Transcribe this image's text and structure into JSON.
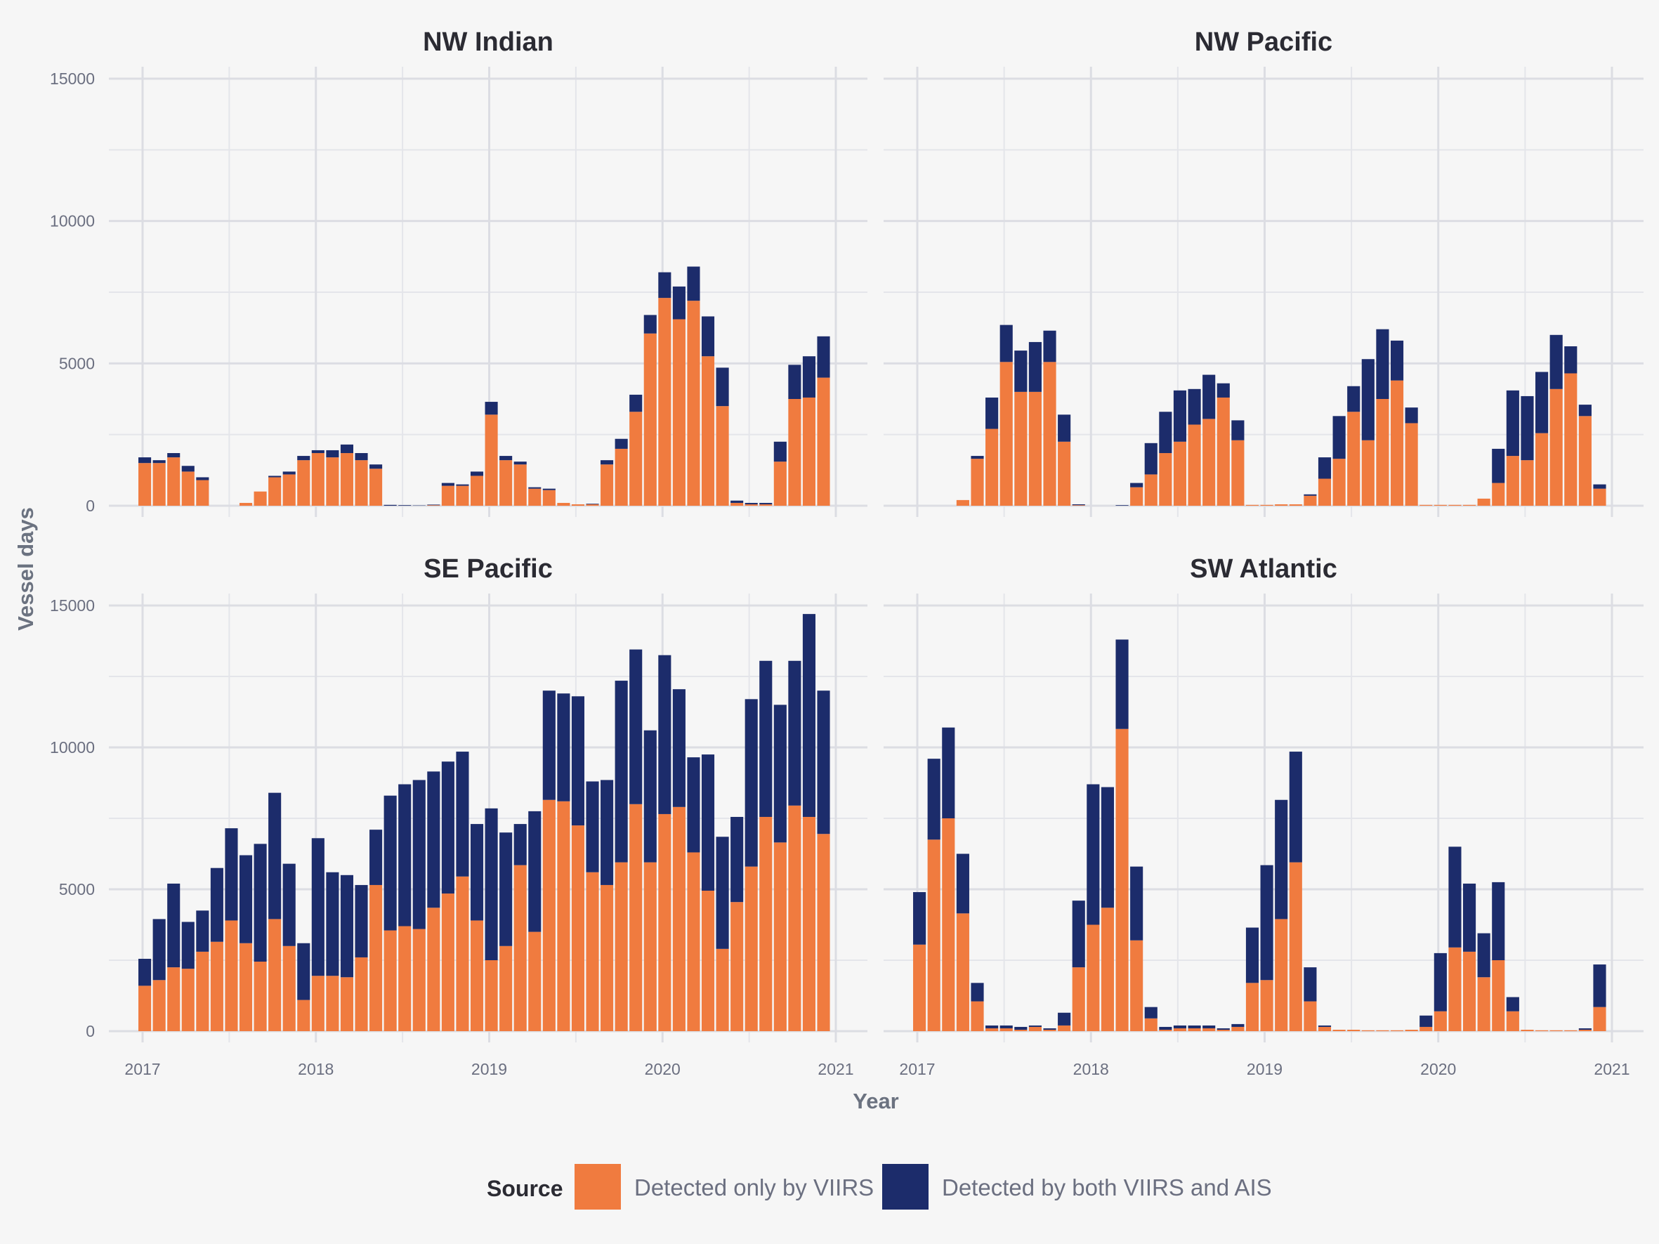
{
  "chart_data": {
    "type": "bar",
    "stacked": true,
    "xlabel": "Year",
    "ylabel": "Vessel days",
    "x_ticks": [
      "2017",
      "2018",
      "2019",
      "2020",
      "2021"
    ],
    "y_ticks": [
      0,
      5000,
      10000,
      15000
    ],
    "ylim": [
      0,
      15500
    ],
    "x_start": "2017-01",
    "grid": true,
    "legend": {
      "title": "Source",
      "position": "bottom",
      "entries": [
        {
          "name": "Detected only by VIIRS",
          "color": "#f07b3f"
        },
        {
          "name": "Detected by both VIIRS and AIS",
          "color": "#1c2c6b"
        }
      ]
    },
    "series_colors": {
      "viirs_only": "#f07b3f",
      "both": "#1c2c6b"
    },
    "panels": [
      {
        "title": "NW Indian",
        "viirs_only": [
          1500,
          1500,
          1700,
          1200,
          900,
          0,
          0,
          100,
          500,
          1000,
          1100,
          1600,
          1850,
          1700,
          1850,
          1600,
          1300,
          0,
          0,
          0,
          20,
          700,
          700,
          1050,
          3200,
          1600,
          1450,
          600,
          550,
          100,
          50,
          50,
          1450,
          2000,
          3300,
          6050,
          7300,
          6550,
          7200,
          5250,
          3500,
          100,
          50,
          50,
          1550,
          3750,
          3800,
          4500
        ],
        "both": [
          200,
          100,
          150,
          200,
          100,
          0,
          0,
          0,
          0,
          50,
          100,
          150,
          100,
          250,
          300,
          250,
          150,
          30,
          20,
          10,
          20,
          100,
          50,
          150,
          450,
          150,
          100,
          50,
          50,
          0,
          0,
          20,
          150,
          350,
          600,
          650,
          900,
          1150,
          1200,
          1400,
          1350,
          80,
          50,
          50,
          700,
          1200,
          1450,
          1450
        ]
      },
      {
        "title": "NW Pacific",
        "viirs_only": [
          0,
          0,
          0,
          200,
          1650,
          2700,
          5050,
          4000,
          4000,
          5050,
          2250,
          20,
          0,
          0,
          0,
          650,
          1100,
          1850,
          2250,
          2850,
          3050,
          3800,
          2300,
          30,
          30,
          50,
          50,
          350,
          950,
          1650,
          3300,
          2300,
          3750,
          4400,
          2900,
          30,
          30,
          30,
          30,
          250,
          800,
          1750,
          1600,
          2550,
          4100,
          4650,
          3150,
          600
        ],
        "both": [
          0,
          0,
          0,
          0,
          100,
          1100,
          1300,
          1450,
          1750,
          1100,
          950,
          30,
          0,
          0,
          20,
          150,
          1100,
          1450,
          1800,
          1250,
          1550,
          500,
          700,
          0,
          0,
          0,
          0,
          50,
          750,
          1500,
          900,
          2850,
          2450,
          1400,
          550,
          0,
          0,
          0,
          0,
          0,
          1200,
          2300,
          2250,
          2150,
          1900,
          950,
          400,
          150
        ]
      },
      {
        "title": "SE Pacific",
        "viirs_only": [
          1600,
          1800,
          2250,
          2200,
          2800,
          3150,
          3900,
          3100,
          2450,
          3950,
          3000,
          1100,
          1950,
          1950,
          1900,
          2600,
          5150,
          3550,
          3700,
          3600,
          4350,
          4850,
          5450,
          3900,
          2500,
          3000,
          5850,
          3500,
          8150,
          8100,
          7250,
          5600,
          5150,
          5950,
          8000,
          5950,
          7650,
          7900,
          6300,
          4950,
          2900,
          4550,
          5800,
          7550,
          6650,
          7950,
          7550,
          6950
        ],
        "both": [
          950,
          2150,
          2950,
          1650,
          1450,
          2600,
          3250,
          3100,
          4150,
          4450,
          2900,
          2000,
          4850,
          3650,
          3600,
          2550,
          1950,
          4750,
          5000,
          5250,
          4800,
          4650,
          4400,
          3400,
          5350,
          4000,
          1450,
          4250,
          3850,
          3800,
          4550,
          3200,
          3700,
          6400,
          5450,
          4650,
          5600,
          4150,
          3350,
          4800,
          3950,
          3000,
          5900,
          5500,
          4850,
          5100,
          7150,
          5050
        ]
      },
      {
        "title": "SW Atlantic",
        "viirs_only": [
          3050,
          6750,
          7500,
          4150,
          1050,
          100,
          100,
          50,
          150,
          50,
          200,
          2250,
          3750,
          4350,
          10650,
          3200,
          450,
          50,
          100,
          100,
          100,
          50,
          150,
          1700,
          1800,
          3950,
          5950,
          1050,
          150,
          50,
          50,
          30,
          30,
          30,
          50,
          150,
          700,
          2950,
          2800,
          1900,
          2500,
          700,
          50,
          30,
          30,
          30,
          50,
          850
        ],
        "both": [
          1850,
          2850,
          3200,
          2100,
          650,
          100,
          100,
          100,
          50,
          50,
          450,
          2350,
          4950,
          4250,
          3150,
          2600,
          400,
          100,
          100,
          100,
          100,
          50,
          100,
          1950,
          4050,
          4200,
          3900,
          1200,
          50,
          0,
          0,
          0,
          0,
          0,
          0,
          400,
          2050,
          3550,
          2400,
          1550,
          2750,
          500,
          0,
          0,
          0,
          0,
          50,
          1500
        ]
      }
    ]
  }
}
